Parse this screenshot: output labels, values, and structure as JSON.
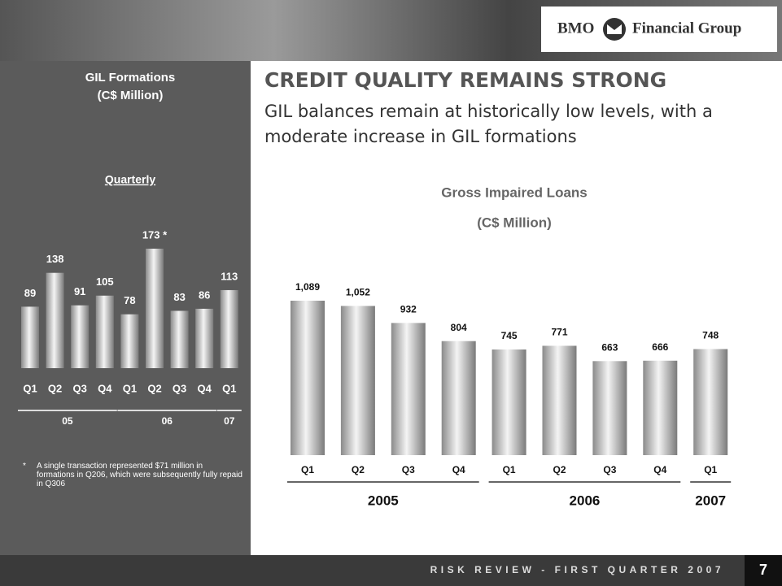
{
  "header": {
    "logo_left": "BMO",
    "logo_right": "Financial Group"
  },
  "title": "CREDIT QUALITY REMAINS STRONG",
  "subtitle": "GIL balances remain at historically low levels, with a moderate increase in GIL formations",
  "footer": "RISK REVIEW - FIRST QUARTER 2007",
  "page_number": "7",
  "chart_data": [
    {
      "type": "bar",
      "title": "GIL Formations",
      "subtitle": "(C$ Million)",
      "period": "Quarterly",
      "groups": [
        {
          "label": "05",
          "categories": [
            "Q1",
            "Q2",
            "Q3",
            "Q4"
          ]
        },
        {
          "label": "06",
          "categories": [
            "Q1",
            "Q2",
            "Q3",
            "Q4"
          ]
        },
        {
          "label": "07",
          "categories": [
            "Q1"
          ]
        }
      ],
      "values": [
        89,
        138,
        91,
        105,
        78,
        173,
        83,
        86,
        113
      ],
      "value_labels": [
        "89",
        "138",
        "91",
        "105",
        "78",
        "173 *",
        "83",
        "86",
        "113"
      ],
      "footnote_marker": "*",
      "footnote": "A single transaction represented $71 million in formations in Q206, which were subsequently fully repaid in Q306"
    },
    {
      "type": "bar",
      "title": "Gross Impaired Loans",
      "subtitle": "(C$ Million)",
      "groups": [
        {
          "label": "2005",
          "categories": [
            "Q1",
            "Q2",
            "Q3",
            "Q4"
          ]
        },
        {
          "label": "2006",
          "categories": [
            "Q1",
            "Q2",
            "Q3",
            "Q4"
          ]
        },
        {
          "label": "2007",
          "categories": [
            "Q1"
          ]
        }
      ],
      "values": [
        1089,
        1052,
        932,
        804,
        745,
        771,
        663,
        666,
        748
      ],
      "value_labels": [
        "1,089",
        "1,052",
        "932",
        "804",
        "745",
        "771",
        "663",
        "666",
        "748"
      ]
    }
  ]
}
